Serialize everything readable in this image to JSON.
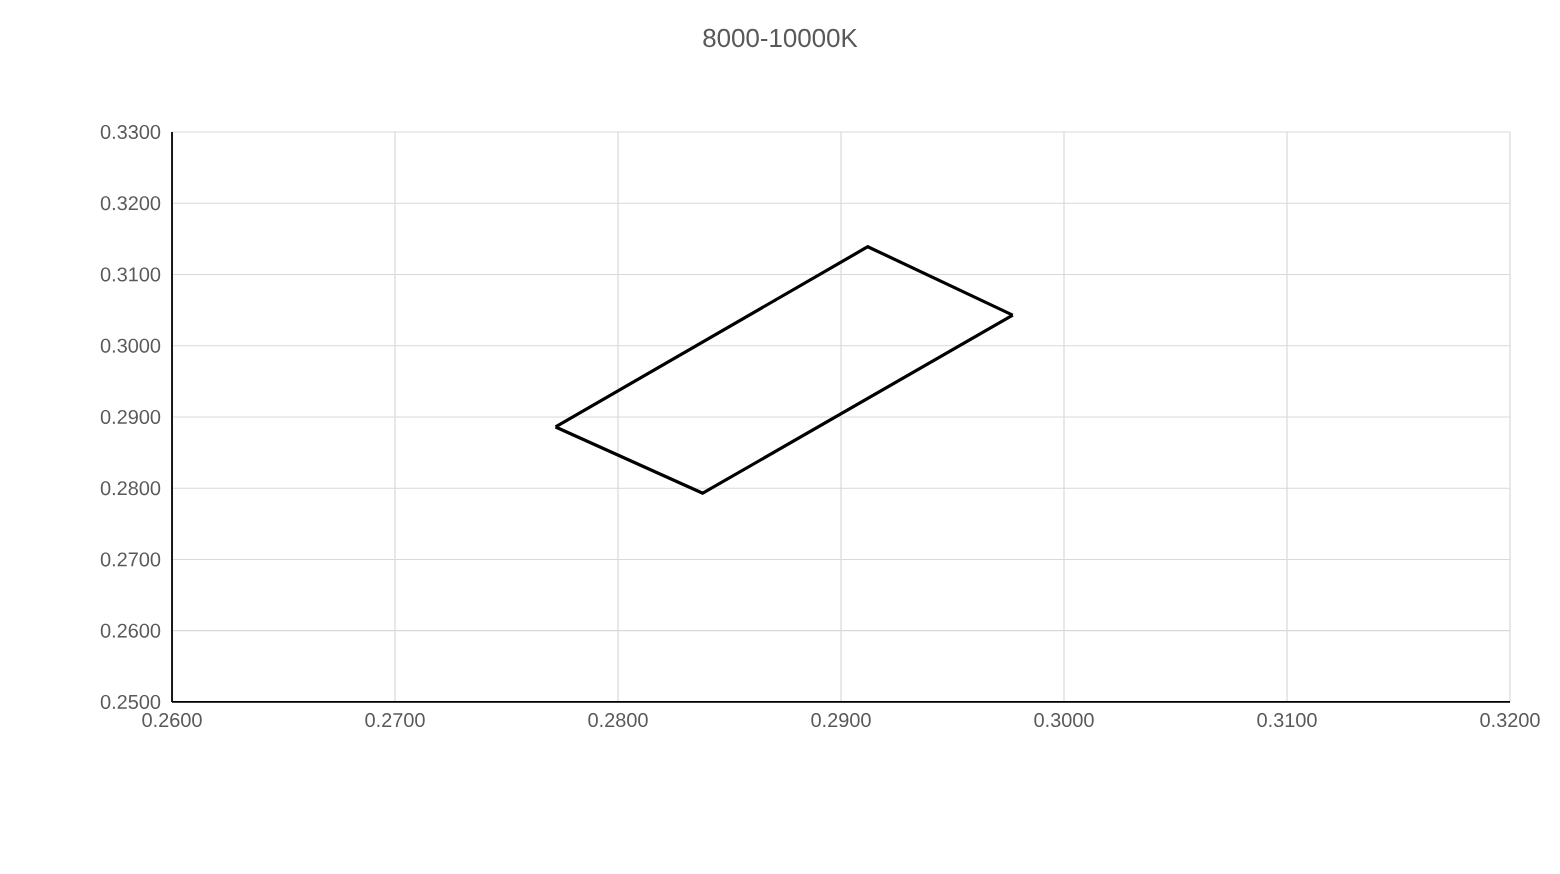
{
  "chart_data": {
    "type": "line",
    "title": "8000-10000K",
    "series": [
      {
        "color": "#000000",
        "x": [
          0.2772,
          0.2838,
          0.2977
        ],
        "values": [
          0.2886,
          0.2793,
          0.3043
        ]
      },
      {
        "color": "#000000",
        "x": [
          0.2772,
          0.2912,
          0.2977
        ],
        "values": [
          0.2886,
          0.3139,
          0.3043
        ]
      }
    ],
    "xlim": [
      0.26,
      0.32
    ],
    "ylim": [
      0.25,
      0.33
    ],
    "xticks": [
      {
        "value": 0.26,
        "label": "0.2600"
      },
      {
        "value": 0.27,
        "label": "0.2700"
      },
      {
        "value": 0.28,
        "label": "0.2800"
      },
      {
        "value": 0.29,
        "label": "0.2900"
      },
      {
        "value": 0.3,
        "label": "0.3000"
      },
      {
        "value": 0.31,
        "label": "0.3100"
      },
      {
        "value": 0.32,
        "label": "0.3200"
      }
    ],
    "yticks": [
      {
        "value": 0.25,
        "label": "0.2500"
      },
      {
        "value": 0.26,
        "label": "0.2600"
      },
      {
        "value": 0.27,
        "label": "0.2700"
      },
      {
        "value": 0.28,
        "label": "0.2800"
      },
      {
        "value": 0.29,
        "label": "0.2900"
      },
      {
        "value": 0.3,
        "label": "0.3000"
      },
      {
        "value": 0.31,
        "label": "0.3100"
      },
      {
        "value": 0.32,
        "label": "0.3200"
      },
      {
        "value": 0.33,
        "label": "0.3300"
      }
    ],
    "grid": true,
    "marker": "none",
    "line_style": "solid"
  }
}
